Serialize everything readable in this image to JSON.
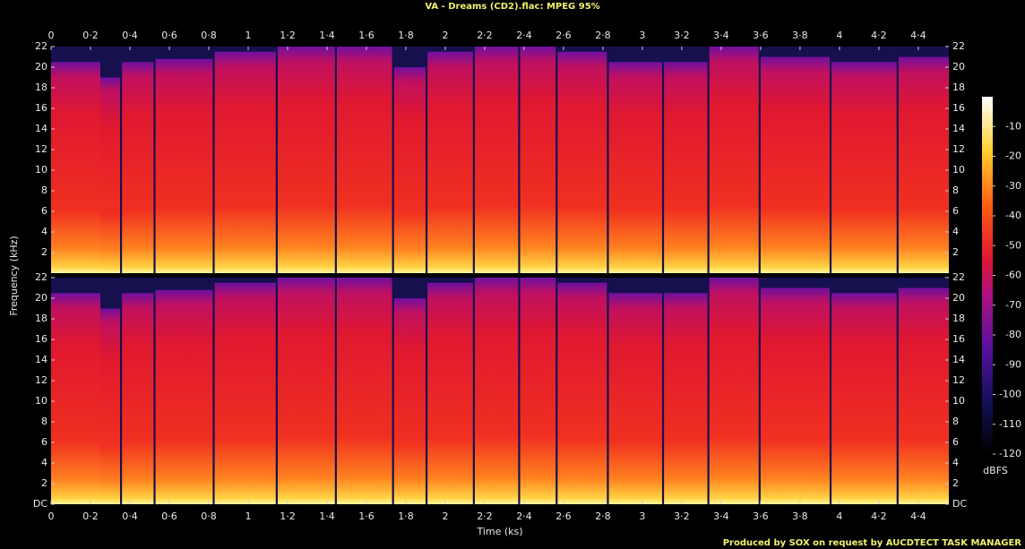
{
  "chart_data": {
    "type": "spectrogram",
    "title": "VA - Dreams (CD2).flac: MPEG 95%",
    "xlabel": "Time (ks)",
    "ylabel": "Frequency (kHz)",
    "footer": "Produced by SOX on request by AUCDTECT TASK MANAGER",
    "xlim": [
      0,
      4.555
    ],
    "xticks": [
      0,
      {
        "value": 0.2,
        "label": "0·2"
      },
      {
        "value": 0.4,
        "label": "0·4"
      },
      {
        "value": 0.6,
        "label": "0·6"
      },
      {
        "value": 0.8,
        "label": "0·8"
      },
      1,
      {
        "value": 1.2,
        "label": "1·2"
      },
      {
        "value": 1.4,
        "label": "1·4"
      },
      {
        "value": 1.6,
        "label": "1·6"
      },
      {
        "value": 1.8,
        "label": "1·8"
      },
      2,
      {
        "value": 2.2,
        "label": "2·2"
      },
      {
        "value": 2.4,
        "label": "2·4"
      },
      {
        "value": 2.6,
        "label": "2·6"
      },
      {
        "value": 2.8,
        "label": "2·8"
      },
      3,
      {
        "value": 3.2,
        "label": "3·2"
      },
      {
        "value": 3.4,
        "label": "3·4"
      },
      {
        "value": 3.6,
        "label": "3·6"
      },
      {
        "value": 3.8,
        "label": "3·8"
      },
      4,
      {
        "value": 4.2,
        "label": "4·2"
      },
      {
        "value": 4.4,
        "label": "4·4"
      }
    ],
    "ylim": [
      0,
      22
    ],
    "yticks": [
      {
        "value": 0,
        "label": "DC"
      },
      2,
      4,
      6,
      8,
      10,
      12,
      14,
      16,
      18,
      20,
      22
    ],
    "colorbar_label": "dBFS",
    "clim": [
      -120,
      0
    ],
    "cticks": [
      -120,
      -110,
      -100,
      -90,
      -80,
      -70,
      -60,
      -50,
      -40,
      -30,
      -20,
      -10
    ],
    "segments": [
      {
        "start": 0,
        "end": 0.25,
        "cutoff": 20.5
      },
      {
        "start": 0.25,
        "end": 0.35,
        "cutoff": 19
      },
      {
        "start": 0.36,
        "end": 0.52,
        "cutoff": 20.5
      },
      {
        "start": 0.53,
        "end": 0.82,
        "cutoff": 20.8
      },
      {
        "start": 0.83,
        "end": 1.14,
        "cutoff": 21.5
      },
      {
        "start": 1.15,
        "end": 1.44,
        "cutoff": 22
      },
      {
        "start": 1.45,
        "end": 1.73,
        "cutoff": 22
      },
      {
        "start": 1.74,
        "end": 1.9,
        "cutoff": 20
      },
      {
        "start": 1.91,
        "end": 2.14,
        "cutoff": 21.5
      },
      {
        "start": 2.15,
        "end": 2.37,
        "cutoff": 22
      },
      {
        "start": 2.38,
        "end": 2.56,
        "cutoff": 22
      },
      {
        "start": 2.57,
        "end": 2.82,
        "cutoff": 21.5
      },
      {
        "start": 2.83,
        "end": 3.1,
        "cutoff": 20.5
      },
      {
        "start": 3.11,
        "end": 3.33,
        "cutoff": 20.5
      },
      {
        "start": 3.34,
        "end": 3.59,
        "cutoff": 22
      },
      {
        "start": 3.6,
        "end": 3.95,
        "cutoff": 21
      },
      {
        "start": 3.96,
        "end": 4.29,
        "cutoff": 20.5
      },
      {
        "start": 4.3,
        "end": 4.555,
        "cutoff": 21
      }
    ]
  }
}
